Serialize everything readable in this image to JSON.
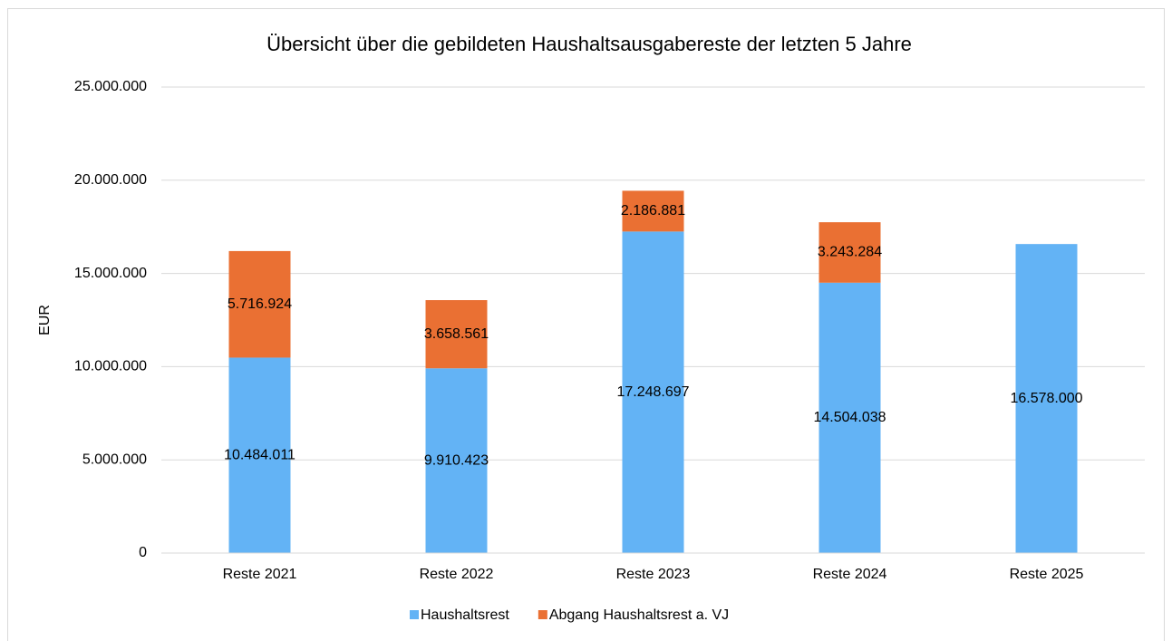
{
  "chart_data": {
    "type": "stacked_bar",
    "title": "Übersicht über die gebildeten Haushaltsausgabereste der letzten 5 Jahre",
    "y_label": "EUR",
    "categories": [
      "Reste 2021",
      "Reste 2022",
      "Reste 2023",
      "Reste 2024",
      "Reste 2025"
    ],
    "series": [
      {
        "name": "Haushaltsrest",
        "color": "#63b3f5",
        "values": [
          10484011,
          9910423,
          17248697,
          14504038,
          16578000
        ],
        "value_labels": [
          "10.484.011",
          "9.910.423",
          "17.248.697",
          "14.504.038",
          "16.578.000"
        ]
      },
      {
        "name": "Abgang Haushaltsrest a. VJ",
        "color": "#ea7033",
        "values": [
          5716924,
          3658561,
          2186881,
          3243284,
          null
        ],
        "value_labels": [
          "5.716.924",
          "3.658.561",
          "2.186.881",
          "3.243.284",
          null
        ]
      }
    ],
    "ylim": [
      0,
      25000000
    ],
    "yticks": [
      0,
      {
        "value": 5000000,
        "label": "5.000.000"
      },
      {
        "value": 10000000,
        "label": "10.000.000"
      },
      {
        "value": 15000000,
        "label": "15.000.000"
      },
      {
        "value": 20000000,
        "label": "20.000.000"
      },
      {
        "value": 25000000,
        "label": "25.000.000"
      }
    ],
    "grid": true,
    "legend": "bottom"
  }
}
